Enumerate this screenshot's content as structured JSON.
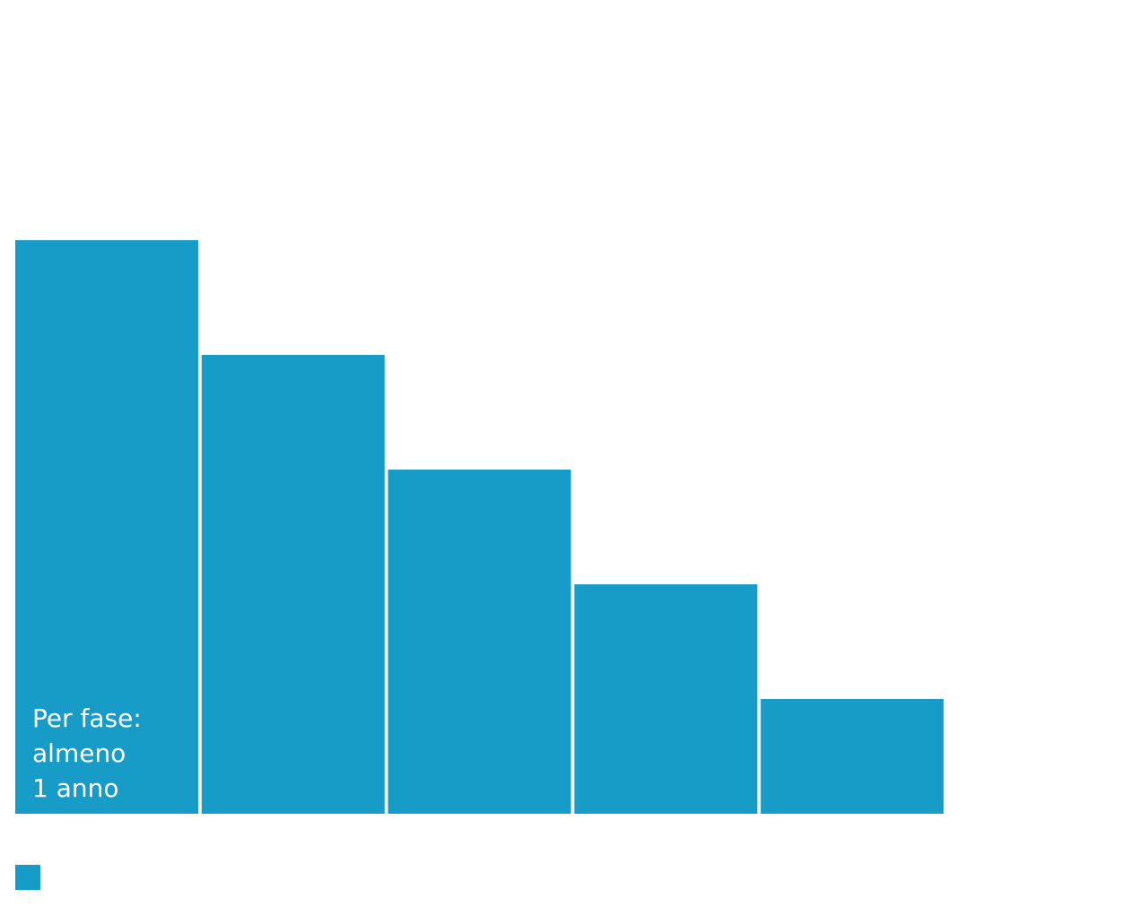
{
  "chart_data": {
    "type": "bar",
    "categories": [
      "",
      "",
      "",
      "",
      ""
    ],
    "values": [
      5,
      4,
      3,
      2,
      1
    ],
    "ylim": [
      0,
      5
    ],
    "grid": false,
    "bar_color": "#179BC7",
    "bar_label": {
      "line1": "Per fase:",
      "line2": "almeno",
      "line3": "1 anno"
    },
    "legend": {
      "placement": "bottom-left",
      "swatch_color": "#179BC7",
      "text": ""
    }
  }
}
